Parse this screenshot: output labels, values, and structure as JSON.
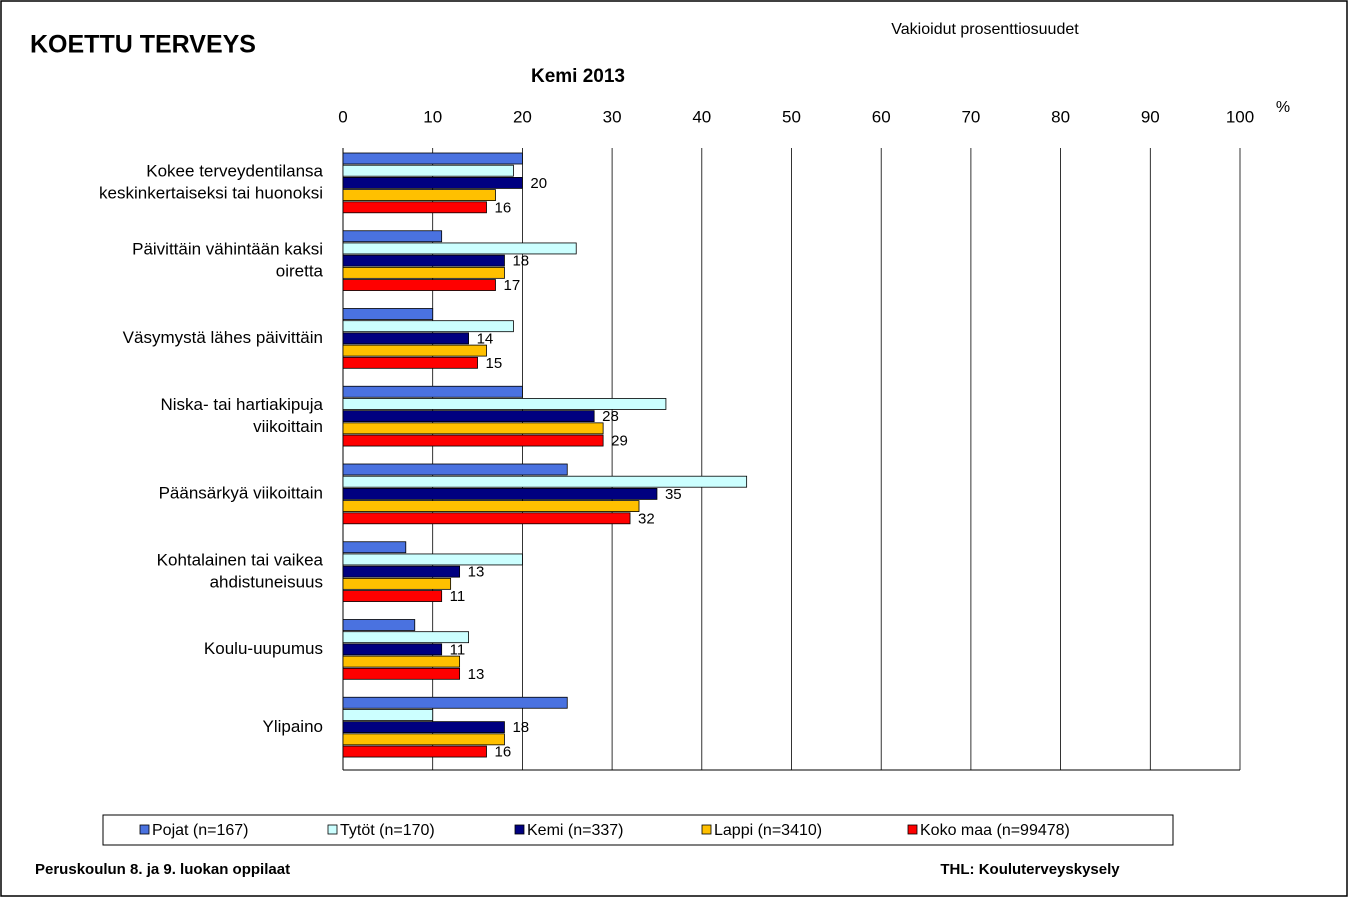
{
  "chart_data": {
    "type": "bar",
    "orientation": "horizontal",
    "title": "KOETTU TERVEYS",
    "subtitle": "Kemi 2013",
    "annotation": "Vakioidut prosenttiosuudet",
    "x_unit": "%",
    "footer_left": "Peruskoulun 8. ja 9. luokan oppilaat",
    "footer_right": "THL: Kouluterveyskysely",
    "categories": [
      [
        "Kokee terveydentilansa",
        "keskinkertaiseksi tai huonoksi"
      ],
      [
        "Päivittäin vähintään kaksi",
        "oiretta"
      ],
      [
        "Väsymystä lähes päivittäin"
      ],
      [
        "Niska- tai hartiakipuja",
        "viikoittain"
      ],
      [
        "Päänsärkyä viikoittain"
      ],
      [
        "Kohtalainen tai vaikea",
        "ahdistuneisuus"
      ],
      [
        "Koulu-uupumus"
      ],
      [
        "Ylipaino"
      ]
    ],
    "series": [
      {
        "name": "Pojat (n=167)",
        "color": "#4a72e0",
        "show_labels": false,
        "values": [
          20,
          11,
          10,
          20,
          25,
          7,
          8,
          25
        ]
      },
      {
        "name": "Tytöt (n=170)",
        "color": "#ccffff",
        "show_labels": false,
        "values": [
          19,
          26,
          19,
          36,
          45,
          20,
          14,
          10
        ]
      },
      {
        "name": "Kemi (n=337)",
        "color": "#000080",
        "show_labels": true,
        "values": [
          20,
          18,
          14,
          28,
          35,
          13,
          11,
          18
        ]
      },
      {
        "name": "Lappi (n=3410)",
        "color": "#ffc000",
        "show_labels": false,
        "values": [
          17,
          18,
          16,
          29,
          33,
          12,
          13,
          18
        ]
      },
      {
        "name": "Koko maa (n=99478)",
        "color": "#ff0000",
        "show_labels": true,
        "values": [
          16,
          17,
          15,
          29,
          32,
          11,
          13,
          16
        ]
      }
    ],
    "xlim": [
      0,
      100
    ],
    "xticks": [
      0,
      10,
      20,
      30,
      40,
      50,
      60,
      70,
      80,
      90,
      100
    ],
    "grid": true,
    "legend": "bottom"
  }
}
